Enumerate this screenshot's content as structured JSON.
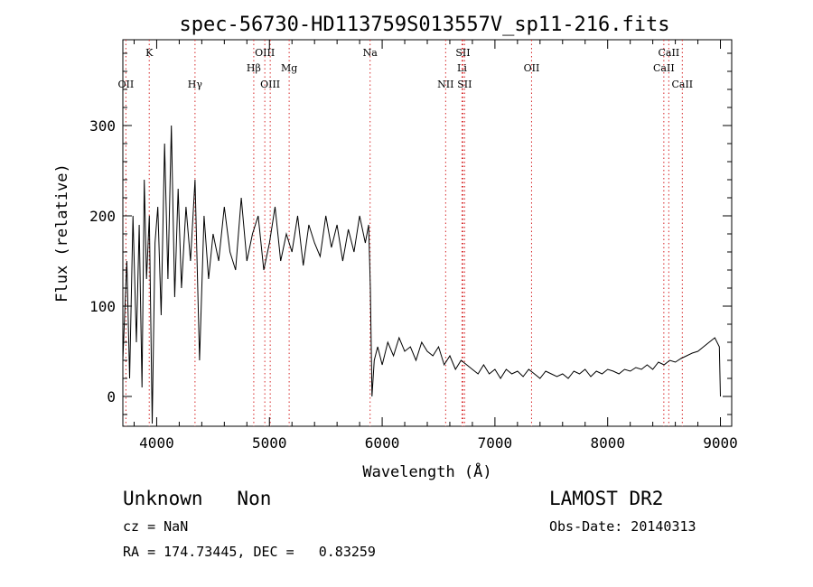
{
  "chart_data": {
    "type": "line",
    "title": "spec-56730-HD113759S013557V_sp11-216.fits",
    "xlabel": "Wavelength (Å)",
    "ylabel": "Flux (relative)",
    "xlim": [
      3700,
      9100
    ],
    "ylim": [
      -33,
      395
    ],
    "x_ticks": [
      4000,
      5000,
      6000,
      7000,
      8000,
      9000
    ],
    "y_ticks": [
      0,
      100,
      200,
      300
    ],
    "grid": false,
    "line_color": "#000000",
    "marker_color": "#d62728",
    "series": [
      {
        "x": [
          3700,
          3735,
          3760,
          3790,
          3820,
          3845,
          3870,
          3890,
          3910,
          3935,
          3960,
          3985,
          4010,
          4040,
          4070,
          4100,
          4130,
          4160,
          4190,
          4220,
          4260,
          4300,
          4340,
          4380,
          4420,
          4460,
          4500,
          4550,
          4600,
          4650,
          4700,
          4750,
          4800,
          4850,
          4900,
          4950,
          5000,
          5050,
          5100,
          5150,
          5200,
          5250,
          5300,
          5350,
          5400,
          5450,
          5500,
          5550,
          5600,
          5650,
          5700,
          5750,
          5800,
          5850,
          5880,
          5895,
          5910,
          5930,
          5960,
          6000,
          6050,
          6100,
          6150,
          6200,
          6250,
          6300,
          6350,
          6400,
          6450,
          6500,
          6550,
          6600,
          6650,
          6700,
          6750,
          6800,
          6850,
          6900,
          6950,
          7000,
          7050,
          7100,
          7150,
          7200,
          7250,
          7300,
          7350,
          7400,
          7450,
          7500,
          7550,
          7600,
          7650,
          7700,
          7750,
          7800,
          7850,
          7900,
          7950,
          8000,
          8050,
          8100,
          8150,
          8200,
          8250,
          8300,
          8350,
          8400,
          8450,
          8500,
          8550,
          8600,
          8650,
          8700,
          8750,
          8800,
          8850,
          8900,
          8950,
          8990,
          9000
        ],
        "y": [
          40,
          150,
          20,
          200,
          60,
          190,
          10,
          240,
          130,
          200,
          -30,
          170,
          210,
          90,
          280,
          130,
          300,
          110,
          230,
          120,
          210,
          150,
          240,
          40,
          200,
          130,
          180,
          150,
          210,
          160,
          140,
          220,
          150,
          180,
          200,
          140,
          170,
          210,
          150,
          180,
          160,
          200,
          145,
          190,
          170,
          155,
          200,
          165,
          190,
          150,
          185,
          160,
          200,
          170,
          190,
          120,
          0,
          40,
          55,
          35,
          60,
          45,
          65,
          50,
          55,
          40,
          60,
          50,
          45,
          55,
          35,
          45,
          30,
          40,
          35,
          30,
          25,
          35,
          25,
          30,
          20,
          30,
          25,
          28,
          22,
          30,
          25,
          20,
          28,
          25,
          22,
          25,
          20,
          28,
          25,
          30,
          22,
          28,
          25,
          30,
          28,
          25,
          30,
          28,
          32,
          30,
          35,
          30,
          38,
          35,
          40,
          38,
          42,
          45,
          48,
          50,
          55,
          60,
          65,
          55,
          0
        ]
      }
    ],
    "lines": [
      {
        "x": 3727,
        "labels": [
          "OII"
        ],
        "rows": [
          3
        ]
      },
      {
        "x": 3934,
        "labels": [
          "K"
        ],
        "rows": [
          1
        ]
      },
      {
        "x": 4340,
        "labels": [
          "Hγ"
        ],
        "rows": [
          3
        ]
      },
      {
        "x": 4861,
        "labels": [
          "Hβ"
        ],
        "rows": [
          2
        ]
      },
      {
        "x": 4959,
        "labels": [
          "OIII"
        ],
        "rows": [
          1
        ]
      },
      {
        "x": 5007,
        "labels": [
          "OIII"
        ],
        "rows": [
          3
        ]
      },
      {
        "x": 5175,
        "labels": [
          "Mg"
        ],
        "rows": [
          2
        ]
      },
      {
        "x": 5893,
        "labels": [
          "Na"
        ],
        "rows": [
          1
        ]
      },
      {
        "x": 6563,
        "labels": [
          "NII"
        ],
        "rows": [
          3
        ]
      },
      {
        "x": 6708,
        "labels": [
          "Li"
        ],
        "rows": [
          2
        ]
      },
      {
        "x": 6716,
        "labels": [
          "SII"
        ],
        "rows": [
          1
        ]
      },
      {
        "x": 6731,
        "labels": [
          "SII"
        ],
        "rows": [
          3
        ]
      },
      {
        "x": 7325,
        "labels": [
          "OII"
        ],
        "rows": [
          2
        ]
      },
      {
        "x": 8498,
        "labels": [
          "CaII"
        ],
        "rows": [
          2
        ]
      },
      {
        "x": 8542,
        "labels": [
          "CaII"
        ],
        "rows": [
          1
        ]
      },
      {
        "x": 8662,
        "labels": [
          "CaII"
        ],
        "rows": [
          3
        ]
      }
    ]
  },
  "info": {
    "class_line": "Unknown   Non",
    "survey": "LAMOST DR2",
    "cz": "cz = NaN",
    "obs_date": "Obs-Date: 20140313",
    "coords": "RA = 174.73445, DEC =   0.83259"
  }
}
